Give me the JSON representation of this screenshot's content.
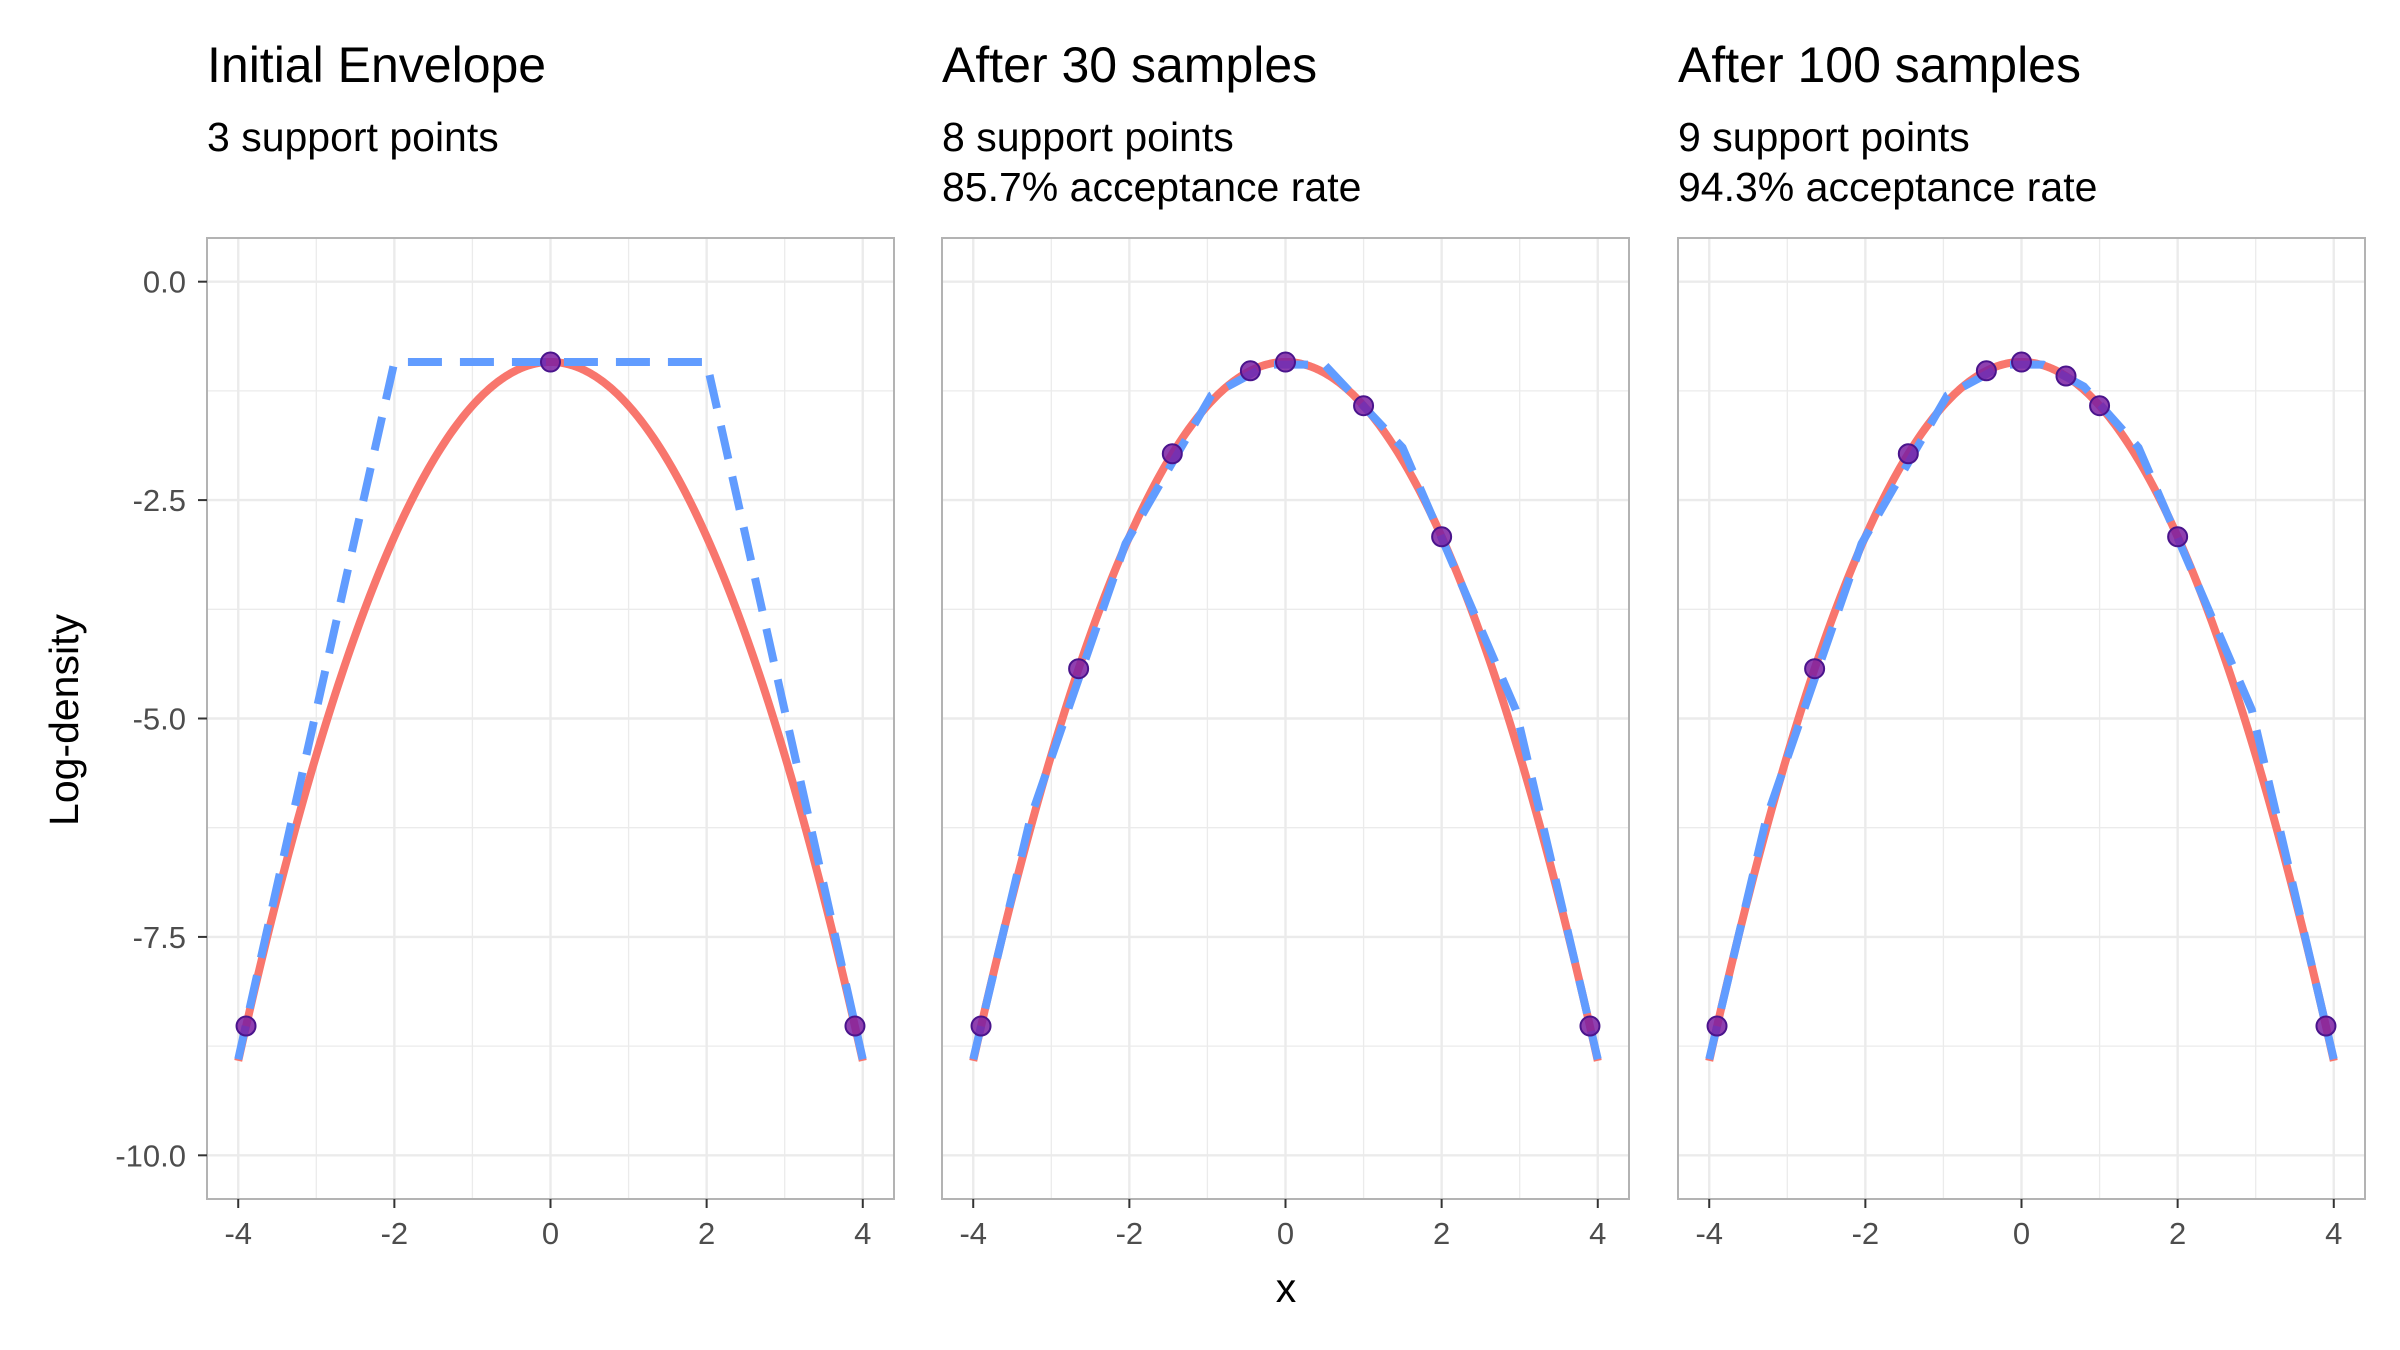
{
  "chart_data": {
    "type": "line",
    "xlabel": "x",
    "ylabel": "Log-density",
    "xlim": [
      -4.4,
      4.4
    ],
    "ylim": [
      -10.5,
      0.5
    ],
    "x_ticks": [
      -4,
      -2,
      0,
      2,
      4
    ],
    "x_tick_labels": [
      "-4",
      "-2",
      "0",
      "2",
      "4"
    ],
    "y_ticks": [
      0.0,
      -2.5,
      -5.0,
      -7.5,
      -10.0
    ],
    "y_tick_labels": [
      "0.0",
      "-2.5",
      "-5.0",
      "-7.5",
      "-10.0"
    ],
    "grid": true,
    "colors": {
      "density": "#F8766D",
      "envelope": "#619CFF",
      "support_points": "#7B1FA2",
      "support_points_edge": "#4A148C",
      "grid": "#EBEBEB",
      "panel_border": "#B3B3B3"
    },
    "density_curve": {
      "mu": 0,
      "sigma": 1,
      "x_range": [
        -4,
        4
      ]
    },
    "panels": [
      {
        "title": "Initial Envelope",
        "subtitle_lines": [
          "3 support points"
        ],
        "support_points": [
          {
            "x": -3.9,
            "y": -8.52
          },
          {
            "x": 0.0,
            "y": -0.92
          },
          {
            "x": 3.9,
            "y": -8.52
          }
        ],
        "envelope": [
          {
            "x": -4.0,
            "y": -8.9
          },
          {
            "x": -2.0,
            "y": -0.92
          },
          {
            "x": 2.0,
            "y": -0.92
          },
          {
            "x": 4.0,
            "y": -8.9
          }
        ]
      },
      {
        "title": "After 30 samples",
        "subtitle_lines": [
          "8 support points",
          "85.7% acceptance rate"
        ],
        "support_points": [
          {
            "x": -3.9,
            "y": -8.52
          },
          {
            "x": -2.65,
            "y": -4.43
          },
          {
            "x": -1.45,
            "y": -1.97
          },
          {
            "x": -0.45,
            "y": -1.02
          },
          {
            "x": 0.0,
            "y": -0.92
          },
          {
            "x": 1.0,
            "y": -1.42
          },
          {
            "x": 2.0,
            "y": -2.92
          },
          {
            "x": 3.9,
            "y": -8.52
          }
        ],
        "envelope": [
          {
            "x": -4.0,
            "y": -8.9
          },
          {
            "x": -3.27,
            "y": -6.15
          },
          {
            "x": -2.05,
            "y": -3.0
          },
          {
            "x": -0.95,
            "y": -1.3
          },
          {
            "x": -0.22,
            "y": -0.95
          },
          {
            "x": 0.5,
            "y": -0.95
          },
          {
            "x": 1.5,
            "y": -1.9
          },
          {
            "x": 2.95,
            "y": -4.9
          },
          {
            "x": 4.0,
            "y": -8.9
          }
        ]
      },
      {
        "title": "After 100 samples",
        "subtitle_lines": [
          "9 support points",
          "94.3% acceptance rate"
        ],
        "support_points": [
          {
            "x": -3.9,
            "y": -8.52
          },
          {
            "x": -2.65,
            "y": -4.43
          },
          {
            "x": -1.45,
            "y": -1.97
          },
          {
            "x": -0.45,
            "y": -1.02
          },
          {
            "x": 0.0,
            "y": -0.92
          },
          {
            "x": 0.57,
            "y": -1.08
          },
          {
            "x": 1.0,
            "y": -1.42
          },
          {
            "x": 2.0,
            "y": -2.92
          },
          {
            "x": 3.9,
            "y": -8.52
          }
        ],
        "envelope": [
          {
            "x": -4.0,
            "y": -8.9
          },
          {
            "x": -3.27,
            "y": -6.15
          },
          {
            "x": -2.05,
            "y": -3.0
          },
          {
            "x": -0.95,
            "y": -1.3
          },
          {
            "x": -0.22,
            "y": -0.95
          },
          {
            "x": 0.28,
            "y": -0.95
          },
          {
            "x": 0.8,
            "y": -1.2
          },
          {
            "x": 1.5,
            "y": -1.9
          },
          {
            "x": 2.95,
            "y": -4.9
          },
          {
            "x": 4.0,
            "y": -8.9
          }
        ]
      }
    ]
  }
}
